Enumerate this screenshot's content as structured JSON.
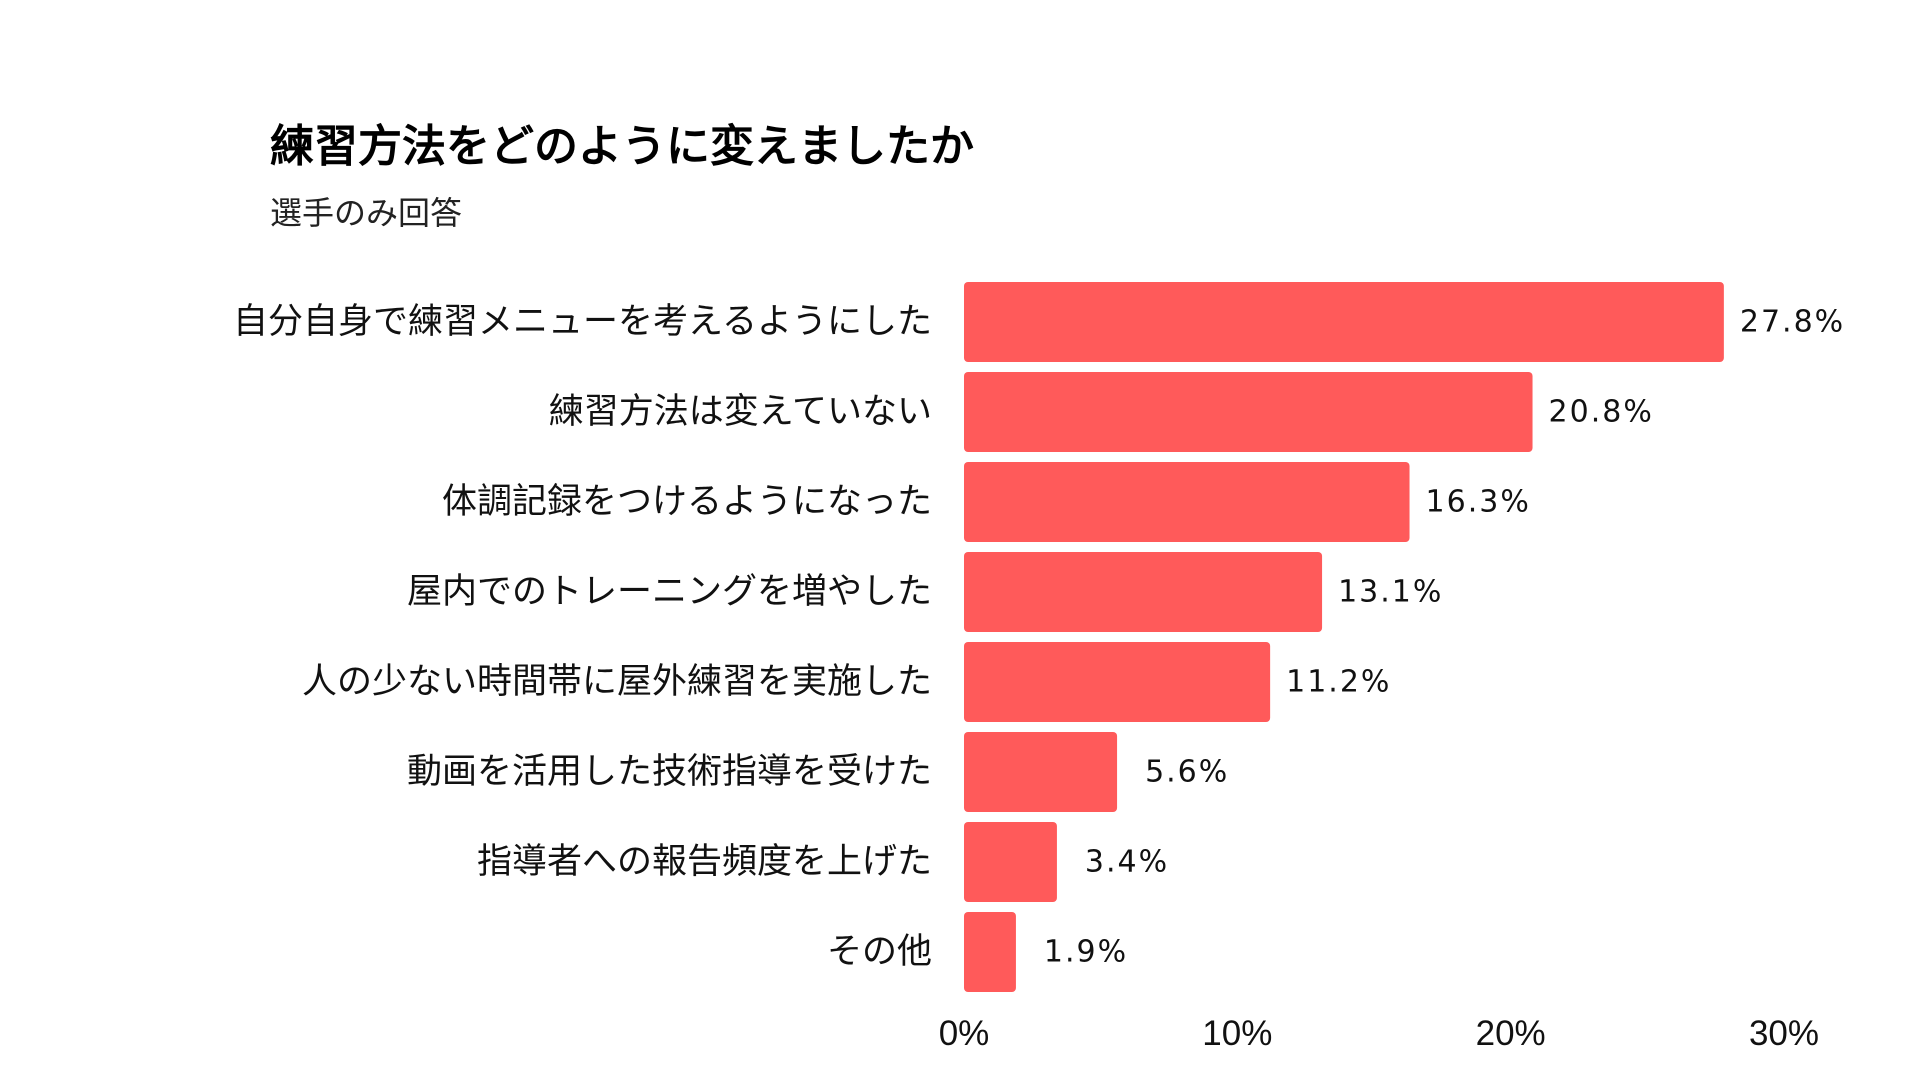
{
  "chart_data": {
    "type": "bar",
    "orientation": "horizontal",
    "title": "練習方法をどのように変えましたか",
    "subtitle": "選手のみ回答",
    "categories": [
      "自分自身で練習メニューを考えるようにした",
      "練習方法は変えていない",
      "体調記録をつけるようになった",
      "屋内でのトレーニングを増やした",
      "人の少ない時間帯に屋外練習を実施した",
      "動画を活用した技術指導を受けた",
      "指導者への報告頻度を上げた",
      "その他"
    ],
    "values": [
      27.8,
      20.8,
      16.3,
      13.1,
      11.2,
      5.6,
      3.4,
      1.9
    ],
    "value_labels": [
      "27.8%",
      "20.8%",
      "16.3%",
      "13.1%",
      "11.2%",
      "5.6%",
      "3.4%",
      "1.9%"
    ],
    "xlim": [
      0,
      30
    ],
    "xticks": [
      0,
      10,
      20,
      30
    ],
    "xtick_labels": [
      "0%",
      "10%",
      "20%",
      "30%"
    ],
    "xlabel": "",
    "ylabel": "",
    "grid": false,
    "bar_color": "#ff5a5a"
  }
}
